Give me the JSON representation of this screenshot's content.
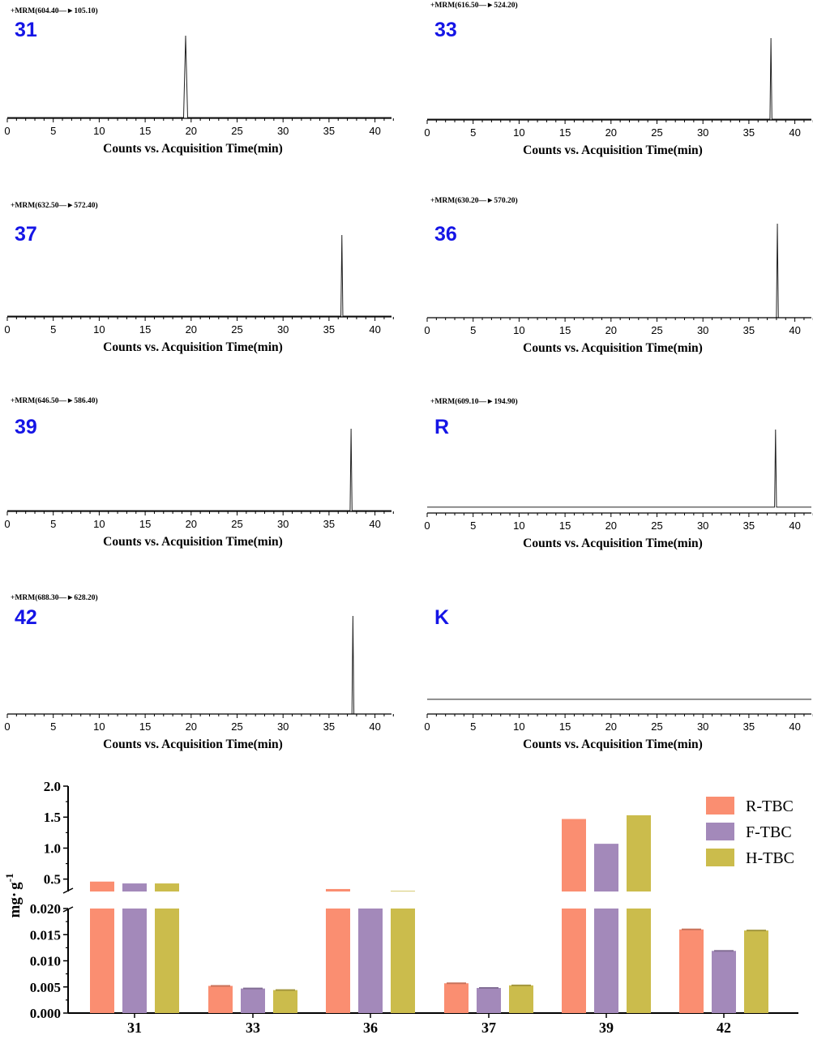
{
  "chart_data": [
    {
      "type": "line",
      "panel_label": "31",
      "transition": "+MRM(604.40—►105.10)",
      "xlabel": "Counts vs. Acquisition Time(min)",
      "x_ticks": [
        "0",
        "5",
        "10",
        "15",
        "20",
        "25",
        "30",
        "35",
        "40"
      ],
      "xlim": [
        0,
        42
      ],
      "baseline": 0.01,
      "peak": {
        "x": 19.4,
        "height": 1.0
      }
    },
    {
      "type": "line",
      "panel_label": "33",
      "transition": "+MRM(616.50—►524.20)",
      "xlabel": "Counts vs. Acquisition Time(min)",
      "x_ticks": [
        "0",
        "5",
        "10",
        "15",
        "20",
        "25",
        "30",
        "35",
        "40"
      ],
      "xlim": [
        0,
        42
      ],
      "baseline": 0.01,
      "peak": {
        "x": 37.4,
        "height": 1.0
      }
    },
    {
      "type": "line",
      "panel_label": "37",
      "transition": "+MRM(632.50—►572.40)",
      "xlabel": "Counts vs. Acquisition Time(min)",
      "x_ticks": [
        "0",
        "5",
        "10",
        "15",
        "20",
        "25",
        "30",
        "35",
        "40"
      ],
      "xlim": [
        0,
        42
      ],
      "baseline": 0.01,
      "peak": {
        "x": 36.4,
        "height": 1.0
      }
    },
    {
      "type": "line",
      "panel_label": "36",
      "transition": "+MRM(630.20—►570.20)",
      "xlabel": "Counts vs. Acquisition Time(min)",
      "x_ticks": [
        "0",
        "5",
        "10",
        "15",
        "20",
        "25",
        "30",
        "35",
        "40"
      ],
      "xlim": [
        0,
        42
      ],
      "baseline": 0.0,
      "peak": {
        "x": 38.1,
        "height": 1.0
      }
    },
    {
      "type": "line",
      "panel_label": "39",
      "transition": "+MRM(646.50—►586.40)",
      "xlabel": "Counts vs. Acquisition Time(min)",
      "x_ticks": [
        "0",
        "5",
        "10",
        "15",
        "20",
        "25",
        "30",
        "35",
        "40"
      ],
      "xlim": [
        0,
        42
      ],
      "baseline": 0.01,
      "peak": {
        "x": 37.4,
        "height": 1.0
      }
    },
    {
      "type": "line",
      "panel_label": "R",
      "transition": "+MRM(609.10—►194.90)",
      "xlabel": "Counts vs. Acquisition Time(min)",
      "x_ticks": [
        "0",
        "5",
        "10",
        "15",
        "20",
        "25",
        "30",
        "35",
        "40"
      ],
      "xlim": [
        0,
        42
      ],
      "baseline": 0.07,
      "peak": {
        "x": 37.9,
        "height": 1.0
      }
    },
    {
      "type": "line",
      "panel_label": "42",
      "transition": "+MRM(688.30—►628.20)",
      "xlabel": "Counts vs. Acquisition Time(min)",
      "x_ticks": [
        "0",
        "5",
        "10",
        "15",
        "20",
        "25",
        "30",
        "35",
        "40"
      ],
      "xlim": [
        0,
        42
      ],
      "baseline": 0.0,
      "peak": {
        "x": 37.6,
        "height": 1.0
      }
    },
    {
      "type": "line",
      "panel_label": "K",
      "transition": "",
      "xlabel": "Counts vs. Acquisition Time(min)",
      "x_ticks": [
        "0",
        "5",
        "10",
        "15",
        "20",
        "25",
        "30",
        "35",
        "40"
      ],
      "xlim": [
        0,
        42
      ],
      "baseline": 0.15,
      "peak": null
    },
    {
      "type": "bar",
      "title": "",
      "xlabel": "",
      "ylabel_main": "mg",
      "ylabel_dot": "·",
      "ylabel_unit": "g",
      "ylabel_exp": "-1",
      "categories": [
        "31",
        "33",
        "36",
        "37",
        "39",
        "42"
      ],
      "series": [
        {
          "name": "R-TBC",
          "color": "#FA8E71",
          "values": [
            0.46,
            0.0052,
            0.34,
            0.0057,
            1.47,
            0.016
          ]
        },
        {
          "name": "F-TBC",
          "color": "#A389BA",
          "values": [
            0.43,
            0.0047,
            0.3,
            0.0048,
            1.07,
            0.0119
          ]
        },
        {
          "name": "H-TBC",
          "color": "#CBBC4C",
          "values": [
            0.43,
            0.0044,
            0.31,
            0.0053,
            1.53,
            0.0158
          ]
        }
      ],
      "broken_axis": {
        "lower_range": [
          0,
          0.02
        ],
        "upper_range": [
          0.3,
          2.0
        ],
        "lower_ticks": [
          "0.000",
          "0.005",
          "0.010",
          "0.015",
          "0.020"
        ],
        "upper_ticks": [
          "0.5",
          "1.0",
          "1.5",
          "2.0"
        ]
      }
    }
  ]
}
